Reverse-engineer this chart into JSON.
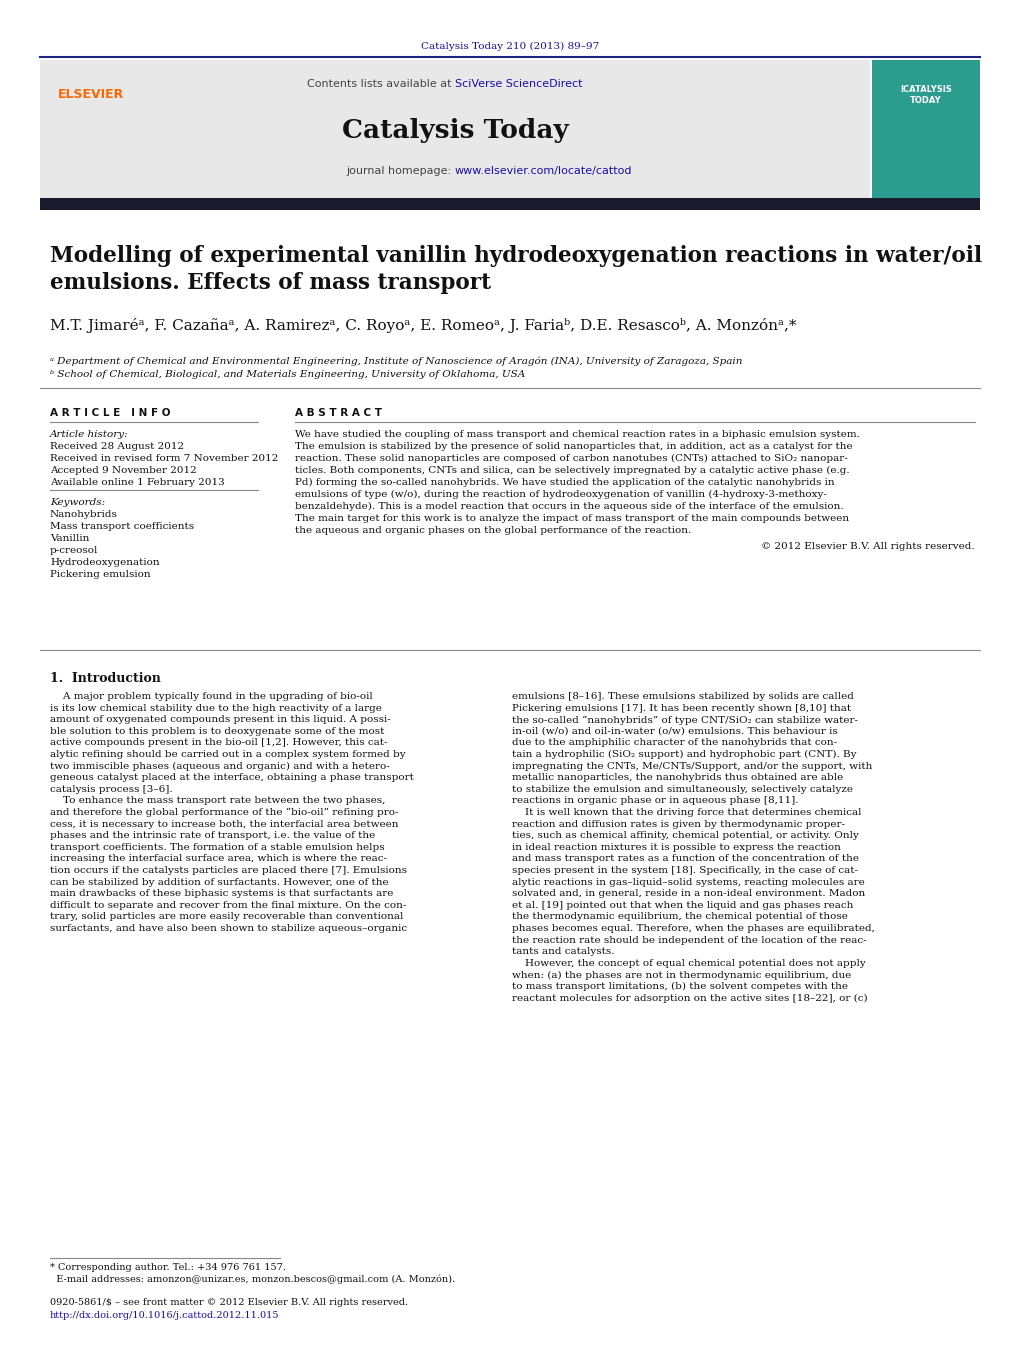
{
  "page_width": 10.21,
  "page_height": 13.51,
  "bg_color": "#ffffff",
  "journal_ref_text": "Catalysis Today 210 (2013) 89–97",
  "journal_ref_color": "#1a0dab",
  "header_bg": "#e8e8e8",
  "header_border_color": "#1a237e",
  "elsevier_color": "#ff6600",
  "elsevier_text": "ELSEVIER",
  "contents_text": "Contents lists available at ",
  "sciverse_text": "SciVerse ScienceDirect",
  "sciverse_color": "#1a0dab",
  "journal_name": "Catalysis Today",
  "journal_homepage_text": "journal homepage: ",
  "journal_url": "www.elsevier.com/locate/cattod",
  "journal_url_color": "#1a0dab",
  "dark_bar_color": "#1a1a2e",
  "article_title": "Modelling of experimental vanillin hydrodeoxygenation reactions in water/oil\nemulsions. Effects of mass transport",
  "authors": "M.T. Jimaréᵃ, F. Cazañaᵃ, A. Ramirezᵃ, C. Royoᵃ, E. Romeoᵃ, J. Fariaᵇ, D.E. Resascoᵇ, A. Monzónᵃ,*",
  "affiliation_a": "ᵃ Department of Chemical and Environmental Engineering, Institute of Nanoscience of Aragón (INA), University of Zaragoza, Spain",
  "affiliation_b": "ᵇ School of Chemical, Biological, and Materials Engineering, University of Oklahoma, USA",
  "section_article_info": "A R T I C L E   I N F O",
  "section_abstract": "A B S T R A C T",
  "article_history_label": "Article history:",
  "received_1": "Received 28 August 2012",
  "received_2": "Received in revised form 7 November 2012",
  "accepted": "Accepted 9 November 2012",
  "available": "Available online 1 February 2013",
  "keywords_label": "Keywords:",
  "keywords": [
    "Nanohybrids",
    "Mass transport coefficients",
    "Vanillin",
    "p-creosol",
    "Hydrodeoxygenation",
    "Pickering emulsion"
  ],
  "copyright_text": "© 2012 Elsevier B.V. All rights reserved.",
  "intro_heading": "1.  Introduction",
  "footnote_star": "* Corresponding author. Tel.: +34 976 761 157.",
  "footnote_email": "  E-mail addresses: amonzon@unizar.es, monzon.bescos@gmail.com (A. Monzón).",
  "issn_text": "0920-5861/$ – see front matter © 2012 Elsevier B.V. All rights reserved.",
  "doi_text": "http://dx.doi.org/10.1016/j.cattod.2012.11.015",
  "doi_color": "#1a0dab",
  "teal_color": "#2a9d8f",
  "abstract_lines": [
    "We have studied the coupling of mass transport and chemical reaction rates in a biphasic emulsion system.",
    "The emulsion is stabilized by the presence of solid nanoparticles that, in addition, act as a catalyst for the",
    "reaction. These solid nanoparticles are composed of carbon nanotubes (CNTs) attached to SiO₂ nanopar-",
    "ticles. Both components, CNTs and silica, can be selectively impregnated by a catalytic active phase (e.g.",
    "Pd) forming the so-called nanohybrids. We have studied the application of the catalytic nanohybrids in",
    "emulsions of type (w/o), during the reaction of hydrodeoxygenation of vanillin (4-hydroxy-3-methoxy-",
    "benzaldehyde). This is a model reaction that occurs in the aqueous side of the interface of the emulsion.",
    "The main target for this work is to analyze the impact of mass transport of the main compounds between",
    "the aqueous and organic phases on the global performance of the reaction."
  ],
  "intro_col1_lines": [
    "    A major problem typically found in the upgrading of bio-oil",
    "is its low chemical stability due to the high reactivity of a large",
    "amount of oxygenated compounds present in this liquid. A possi-",
    "ble solution to this problem is to deoxygenate some of the most",
    "active compounds present in the bio-oil [1,2]. However, this cat-",
    "alytic refining should be carried out in a complex system formed by",
    "two immiscible phases (aqueous and organic) and with a hetero-",
    "geneous catalyst placed at the interface, obtaining a phase transport",
    "catalysis process [3–6].",
    "    To enhance the mass transport rate between the two phases,",
    "and therefore the global performance of the “bio-oil” refining pro-",
    "cess, it is necessary to increase both, the interfacial area between",
    "phases and the intrinsic rate of transport, i.e. the value of the",
    "transport coefficients. The formation of a stable emulsion helps",
    "increasing the interfacial surface area, which is where the reac-",
    "tion occurs if the catalysts particles are placed there [7]. Emulsions",
    "can be stabilized by addition of surfactants. However, one of the",
    "main drawbacks of these biphasic systems is that surfactants are",
    "difficult to separate and recover from the final mixture. On the con-",
    "trary, solid particles are more easily recoverable than conventional",
    "surfactants, and have also been shown to stabilize aqueous–organic"
  ],
  "intro_col2_lines": [
    "emulsions [8–16]. These emulsions stabilized by solids are called",
    "Pickering emulsions [17]. It has been recently shown [8,10] that",
    "the so-called “nanohybrids” of type CNT/SiO₂ can stabilize water-",
    "in-oil (w/o) and oil-in-water (o/w) emulsions. This behaviour is",
    "due to the amphiphilic character of the nanohybrids that con-",
    "tain a hydrophilic (SiO₂ support) and hydrophobic part (CNT). By",
    "impregnating the CNTs, Me/CNTs/Support, and/or the support, with",
    "metallic nanoparticles, the nanohybrids thus obtained are able",
    "to stabilize the emulsion and simultaneously, selectively catalyze",
    "reactions in organic phase or in aqueous phase [8,11].",
    "    It is well known that the driving force that determines chemical",
    "reaction and diffusion rates is given by thermodynamic proper-",
    "ties, such as chemical affinity, chemical potential, or activity. Only",
    "in ideal reaction mixtures it is possible to express the reaction",
    "and mass transport rates as a function of the concentration of the",
    "species present in the system [18]. Specifically, in the case of cat-",
    "alytic reactions in gas–liquid–solid systems, reacting molecules are",
    "solvated and, in general, reside in a non-ideal environment. Madon",
    "et al. [19] pointed out that when the liquid and gas phases reach",
    "the thermodynamic equilibrium, the chemical potential of those",
    "phases becomes equal. Therefore, when the phases are equilibrated,",
    "the reaction rate should be independent of the location of the reac-",
    "tants and catalysts.",
    "    However, the concept of equal chemical potential does not apply",
    "when: (a) the phases are not in thermodynamic equilibrium, due",
    "to mass transport limitations, (b) the solvent competes with the",
    "reactant molecules for adsorption on the active sites [18–22], or (c)"
  ]
}
